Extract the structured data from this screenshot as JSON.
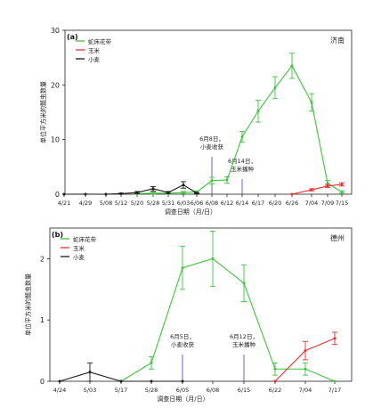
{
  "chart_data": [
    {
      "type": "line",
      "panel_label": "(a)",
      "location": "济南",
      "ylabel": "单位平方米的瓢虫数量",
      "xlabel": "调查日期（月/日）",
      "ylim": [
        0,
        30
      ],
      "yticks": [
        0,
        10,
        20,
        30
      ],
      "x_tick_labels": [
        "4/21",
        "4/29",
        "5/08",
        "5/12",
        "5/20",
        "5/28",
        "5/31",
        "6/03",
        "6/06",
        "6/08",
        "6/12",
        "6/14",
        "6/17",
        "6/20",
        "6/26",
        "7/04",
        "7/09",
        "7/15"
      ],
      "legend": [
        "蛇床花带",
        "玉米",
        "小麦"
      ],
      "legend_position": "top-left",
      "series": [
        {
          "name": "蛇床花带",
          "color": "#3ec43e",
          "points": [
            [
              "5/20",
              0.1
            ],
            [
              "5/28",
              0.2
            ],
            [
              "5/31",
              0.2
            ],
            [
              "6/03",
              0.3
            ],
            [
              "6/06",
              0.4
            ],
            [
              "6/08",
              2.5
            ],
            [
              "6/12",
              2.6
            ],
            [
              "6/14",
              10.5
            ],
            [
              "6/17",
              15.2
            ],
            [
              "6/20",
              19.5
            ],
            [
              "6/26",
              23.5
            ],
            [
              "7/04",
              16.8
            ],
            [
              "7/09",
              2.0
            ],
            [
              "7/15",
              0.4
            ]
          ],
          "err": [
            0.1,
            0.2,
            0.2,
            0.2,
            0.2,
            0.6,
            0.6,
            1.0,
            2.0,
            2.0,
            2.3,
            1.6,
            0.5,
            0.2
          ]
        },
        {
          "name": "玉米",
          "color": "#e8322f",
          "points": [
            [
              "6/26",
              0.0
            ],
            [
              "7/04",
              0.8
            ],
            [
              "7/09",
              1.5
            ],
            [
              "7/15",
              1.8
            ]
          ],
          "err": [
            0,
            0.2,
            0.3,
            0.3
          ]
        },
        {
          "name": "小麦",
          "color": "#1a1a1a",
          "points": [
            [
              "4/21",
              0.0
            ],
            [
              "4/29",
              0.0
            ],
            [
              "5/08",
              0.0
            ],
            [
              "5/12",
              0.1
            ],
            [
              "5/20",
              0.3
            ],
            [
              "5/28",
              1.0
            ],
            [
              "5/31",
              0.3
            ],
            [
              "6/03",
              1.7
            ],
            [
              "6/06",
              0.2
            ]
          ],
          "err": [
            0,
            0,
            0,
            0.1,
            0.2,
            0.4,
            0.2,
            0.6,
            0.1
          ]
        }
      ],
      "annotations": [
        {
          "at": "6/08",
          "lines": [
            "6月8日，",
            "小麦收获"
          ]
        },
        {
          "at": "6/14",
          "lines": [
            "6月14日，",
            "玉米播种"
          ]
        }
      ]
    },
    {
      "type": "line",
      "panel_label": "(b)",
      "location": "德州",
      "ylabel": "单位平方米的瓢虫数量",
      "xlabel": "调查日期（月/日）",
      "ylim": [
        0,
        2.5
      ],
      "yticks": [
        0,
        1,
        2
      ],
      "x_tick_labels": [
        "4/24",
        "5/03",
        "5/17",
        "5/28",
        "6/05",
        "6/08",
        "6/15",
        "6/22",
        "7/04",
        "7/17"
      ],
      "legend": [
        "蛇床花带",
        "玉米",
        "小麦"
      ],
      "legend_position": "top-left",
      "series": [
        {
          "name": "蛇床花带",
          "color": "#3ec43e",
          "points": [
            [
              "5/17",
              0.0
            ],
            [
              "5/28",
              0.3
            ],
            [
              "6/05",
              1.85
            ],
            [
              "6/08",
              2.0
            ],
            [
              "6/15",
              1.6
            ],
            [
              "6/22",
              0.2
            ],
            [
              "7/04",
              0.2
            ],
            [
              "7/17",
              0.0
            ]
          ],
          "err": [
            0,
            0.1,
            0.35,
            0.45,
            0.3,
            0.1,
            0.1,
            0
          ]
        },
        {
          "name": "玉米",
          "color": "#e8322f",
          "points": [
            [
              "6/22",
              0.0
            ],
            [
              "7/04",
              0.5
            ],
            [
              "7/17",
              0.7
            ]
          ],
          "err": [
            0,
            0.15,
            0.1
          ]
        },
        {
          "name": "小麦",
          "color": "#1a1a1a",
          "points": [
            [
              "4/24",
              0.0
            ],
            [
              "5/03",
              0.15
            ],
            [
              "5/17",
              0.0
            ],
            [
              "5/28",
              0.0
            ],
            [
              "6/05",
              0.0
            ]
          ],
          "err": [
            0,
            0.15,
            0,
            0,
            0
          ]
        }
      ],
      "annotations": [
        {
          "at": "6/05",
          "lines": [
            "6月5日，",
            "小麦收获"
          ]
        },
        {
          "at": "6/15",
          "lines": [
            "6月12日，",
            "玉米播种"
          ]
        }
      ]
    }
  ]
}
